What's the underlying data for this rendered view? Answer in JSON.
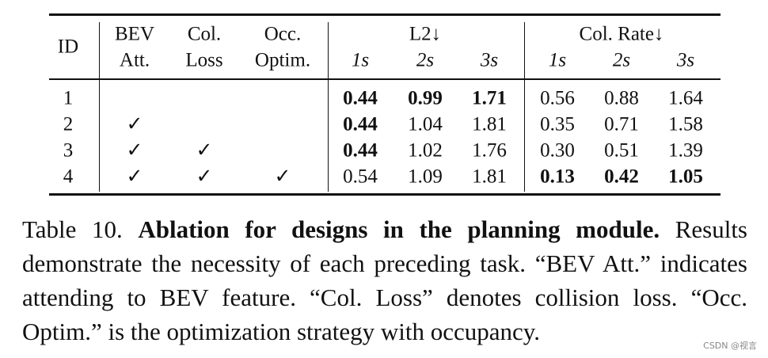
{
  "table": {
    "columns": [
      {
        "top": "ID"
      },
      {
        "top": "BEV",
        "bottom": "Att."
      },
      {
        "top": "Col.",
        "bottom": "Loss"
      },
      {
        "top": "Occ.",
        "bottom": "Optim."
      }
    ],
    "groups": [
      {
        "label": "L2↓",
        "sub": [
          "1s",
          "2s",
          "3s"
        ]
      },
      {
        "label": "Col. Rate↓",
        "sub": [
          "1s",
          "2s",
          "3s"
        ]
      }
    ],
    "rows": [
      {
        "cells": [
          {
            "text": "1"
          },
          null,
          null,
          null,
          {
            "text": "0.44",
            "bold": true
          },
          {
            "text": "0.99",
            "bold": true
          },
          {
            "text": "1.71",
            "bold": true
          },
          {
            "text": "0.56"
          },
          {
            "text": "0.88"
          },
          {
            "text": "1.64"
          }
        ]
      },
      {
        "cells": [
          {
            "text": "2"
          },
          {
            "text": "✓"
          },
          null,
          null,
          {
            "text": "0.44",
            "bold": true
          },
          {
            "text": "1.04"
          },
          {
            "text": "1.81"
          },
          {
            "text": "0.35"
          },
          {
            "text": "0.71"
          },
          {
            "text": "1.58"
          }
        ]
      },
      {
        "cells": [
          {
            "text": "3"
          },
          {
            "text": "✓"
          },
          {
            "text": "✓"
          },
          null,
          {
            "text": "0.44",
            "bold": true
          },
          {
            "text": "1.02"
          },
          {
            "text": "1.76"
          },
          {
            "text": "0.30"
          },
          {
            "text": "0.51"
          },
          {
            "text": "1.39"
          }
        ]
      },
      {
        "cells": [
          {
            "text": "4"
          },
          {
            "text": "✓"
          },
          {
            "text": "✓"
          },
          {
            "text": "✓"
          },
          {
            "text": "0.54"
          },
          {
            "text": "1.09"
          },
          {
            "text": "1.81"
          },
          {
            "text": "0.13",
            "bold": true
          },
          {
            "text": "0.42",
            "bold": true
          },
          {
            "text": "1.05",
            "bold": true
          }
        ]
      }
    ]
  },
  "caption": {
    "label": "Table 10.",
    "title": "Ablation for designs in the planning module.",
    "body": "Results demonstrate the necessity of each preceding task. “BEV Att.” indicates attending to BEV feature. “Col. Loss” denotes collision loss. “Occ. Optim.” is the optimization strategy with occupancy."
  },
  "watermark": "CSDN @视言"
}
